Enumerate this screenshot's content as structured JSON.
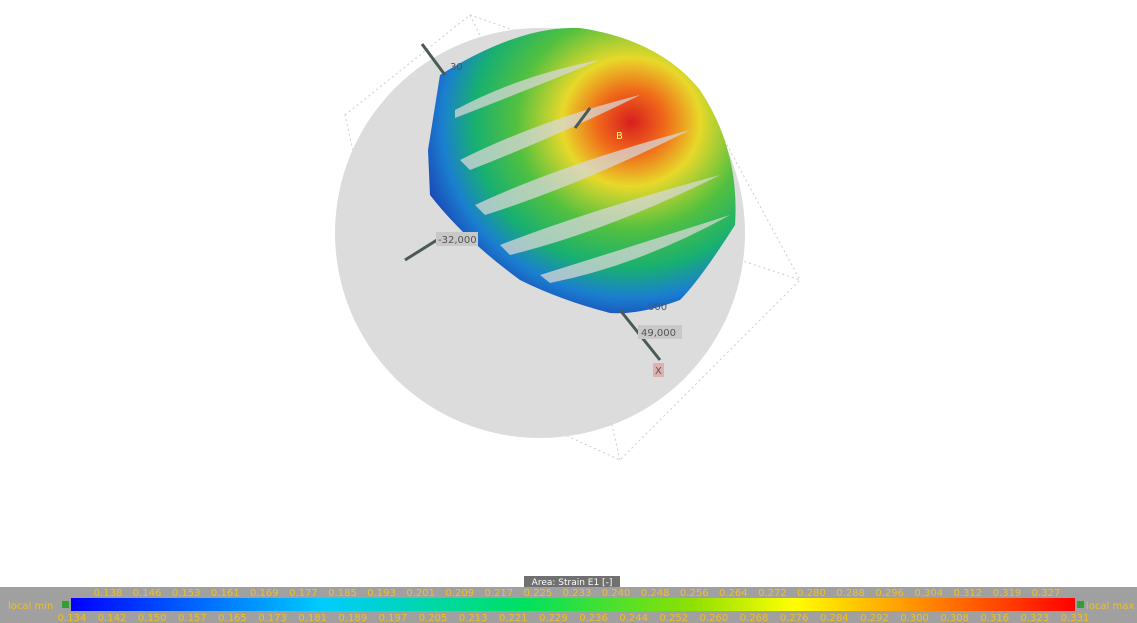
{
  "viewport": {
    "axis_labels": {
      "neg_y": "-32,000",
      "pos_x": "49,000",
      "x_axis": "X",
      "point": "B",
      "partial_a": "000",
      "partial_b": "30"
    }
  },
  "legend": {
    "title": "Area: Strain E1 [-]",
    "min_label": "local min",
    "max_label": "local max",
    "top_ticks": [
      "0.138",
      "0.146",
      "0.153",
      "0.161",
      "0.169",
      "0.177",
      "0.185",
      "0.193",
      "0.201",
      "0.209",
      "0.217",
      "0.225",
      "0.233",
      "0.240",
      "0.248",
      "0.256",
      "0.264",
      "0.272",
      "0.280",
      "0.288",
      "0.296",
      "0.304",
      "0.312",
      "0.319",
      "0.327"
    ],
    "bottom_ticks": [
      "0.134",
      "0.142",
      "0.150",
      "0.157",
      "0.165",
      "0.173",
      "0.181",
      "0.189",
      "0.197",
      "0.205",
      "0.213",
      "0.221",
      "0.229",
      "0.236",
      "0.244",
      "0.252",
      "0.260",
      "0.268",
      "0.276",
      "0.284",
      "0.292",
      "0.300",
      "0.308",
      "0.316",
      "0.323",
      "0.331"
    ]
  }
}
